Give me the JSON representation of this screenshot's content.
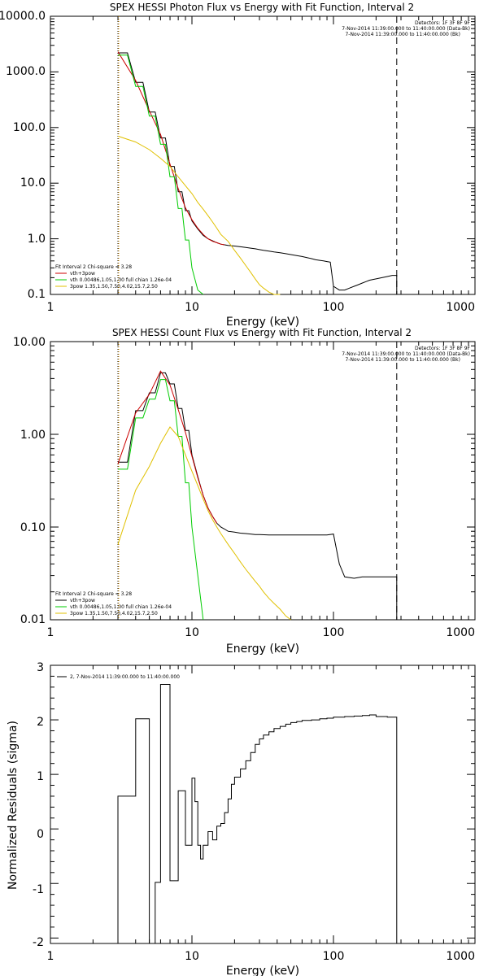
{
  "chart_data": [
    {
      "type": "line",
      "title": "SPEX HESSI Photon Flux vs Energy with Fit Function, Interval 2",
      "xlabel": "Energy (keV)",
      "ylabel": "",
      "xscale": "log",
      "yscale": "log",
      "xlim": [
        1,
        1000
      ],
      "ylim": [
        0.1,
        10000
      ],
      "xticks": [
        "1",
        "10",
        "100",
        "1000"
      ],
      "yticks": [
        "0.1",
        "1.0",
        "10.0",
        "100.0",
        "1000.0",
        "10000.0"
      ],
      "info_lines": [
        "Detectors: 1F 3F 8F 9F",
        "7-Nov-2014 11:39:00.000 to 11:40:00.000 (Data-Bk)",
        "7-Nov-2014 11:39:00.000 to 11:40:00.000 (Bk)"
      ],
      "fit_text": [
        "Fit Interval 2   Chi-square = 3.28",
        "vth+3pow",
        "vth 0.00486,1.05,1.00  full chian 1.26e-04",
        "3pow 1.35,1.50,7.50,4.02,15.7,2.50"
      ],
      "vlines": [
        {
          "x": 3,
          "style": "dotted",
          "color": "#000000"
        },
        {
          "x": 3,
          "style": "dotted",
          "color": "#f0a000"
        },
        {
          "x": 280,
          "style": "dashed",
          "color": "#000000"
        }
      ],
      "series": [
        {
          "color": "#000000",
          "x": [
            3,
            3.5,
            4,
            4.5,
            5,
            5.5,
            6,
            6.5,
            7,
            7.5,
            8,
            8.5,
            9,
            9.5,
            10,
            11,
            12,
            13,
            14,
            15,
            16,
            17,
            18,
            20,
            22,
            24,
            26,
            28,
            30,
            32,
            35,
            38,
            42,
            46,
            50,
            55,
            60,
            65,
            70,
            75,
            80,
            85,
            90,
            95,
            100,
            110,
            120,
            130,
            140,
            150,
            160,
            170,
            180,
            200,
            220,
            240,
            260,
            280
          ],
          "y": [
            2200,
            2200,
            650,
            650,
            190,
            190,
            65,
            65,
            20,
            20,
            7,
            7,
            3.2,
            3.2,
            2.1,
            1.5,
            1.15,
            1.0,
            0.92,
            0.85,
            0.8,
            0.78,
            0.76,
            0.74,
            0.72,
            0.7,
            0.68,
            0.66,
            0.64,
            0.62,
            0.6,
            0.58,
            0.56,
            0.54,
            0.52,
            0.5,
            0.48,
            0.46,
            0.44,
            0.42,
            0.41,
            0.4,
            0.39,
            0.38,
            0.14,
            0.12,
            0.12,
            0.13,
            0.14,
            0.15,
            0.16,
            0.17,
            0.18,
            0.19,
            0.2,
            0.21,
            0.22,
            0.22
          ]
        },
        {
          "color": "#cc0000",
          "x": [
            3,
            4,
            5,
            6,
            7,
            8,
            9,
            10,
            11,
            12,
            13,
            14,
            15,
            16,
            17
          ],
          "y": [
            2300,
            700,
            200,
            75,
            22,
            8,
            3.6,
            2.2,
            1.55,
            1.2,
            1.0,
            0.9,
            0.85,
            0.8,
            0.78
          ]
        },
        {
          "color": "#00cc00",
          "x": [
            3,
            3.5,
            4,
            4.5,
            5,
            5.5,
            6,
            6.5,
            7,
            7.5,
            8,
            8.5,
            9,
            9.5,
            10,
            11,
            12
          ],
          "y": [
            2000,
            2000,
            550,
            550,
            160,
            160,
            50,
            50,
            13,
            13,
            3.5,
            3.5,
            0.95,
            0.95,
            0.3,
            0.12,
            0.1
          ]
        },
        {
          "color": "#e0c000",
          "x": [
            3,
            4,
            5,
            6,
            7,
            8,
            9,
            10,
            11,
            12,
            13,
            14,
            15,
            16,
            18,
            20,
            22,
            24,
            26,
            28,
            30,
            32,
            35,
            38,
            42
          ],
          "y": [
            70,
            55,
            40,
            28,
            20,
            13,
            9,
            6.5,
            4.5,
            3.4,
            2.6,
            2.0,
            1.55,
            1.2,
            0.9,
            0.62,
            0.45,
            0.33,
            0.25,
            0.19,
            0.15,
            0.13,
            0.11,
            0.1,
            0.1
          ]
        }
      ]
    },
    {
      "type": "line",
      "title": "SPEX HESSI Count Flux vs Energy with Fit Function, Interval 2",
      "xlabel": "Energy (keV)",
      "ylabel": "",
      "xscale": "log",
      "yscale": "log",
      "xlim": [
        1,
        1000
      ],
      "ylim": [
        0.01,
        10
      ],
      "xticks": [
        "1",
        "10",
        "100",
        "1000"
      ],
      "yticks": [
        "0.01",
        "0.10",
        "1.00",
        "10.00"
      ],
      "info_lines": [
        "Detectors: 1F 3F 8F 9F",
        "7-Nov-2014 11:39:00.000 to 11:40:00.000 (Data-Bk)",
        "7-Nov-2014 11:39:00.000 to 11:40:00.000 (Bk)"
      ],
      "fit_text": [
        "Fit Interval 2   Chi-square = 3.28",
        "vth+3pow",
        "vth 0.00486,1.05,1.00  full chian 1.26e-04",
        "3pow 1.35,1.50,7.50,4.02,15.7,2.50"
      ],
      "vlines": [
        {
          "x": 3,
          "style": "dotted",
          "color": "#000000"
        },
        {
          "x": 3,
          "style": "dotted",
          "color": "#f0a000"
        },
        {
          "x": 280,
          "style": "dashed",
          "color": "#000000"
        }
      ],
      "series": [
        {
          "color": "#000000",
          "x": [
            3,
            3.5,
            4,
            4.5,
            5,
            5.5,
            6,
            6.5,
            7,
            7.5,
            8,
            8.5,
            9,
            9.5,
            10,
            11,
            12,
            13,
            14,
            15,
            16,
            17,
            18,
            20,
            22,
            24,
            26,
            28,
            30,
            35,
            40,
            50,
            60,
            70,
            80,
            90,
            100,
            110,
            120,
            140,
            160,
            200,
            280
          ],
          "y": [
            0.5,
            0.5,
            1.8,
            1.8,
            2.8,
            2.8,
            4.6,
            4.6,
            3.5,
            3.5,
            1.9,
            1.9,
            1.1,
            1.1,
            0.6,
            0.35,
            0.22,
            0.16,
            0.13,
            0.11,
            0.1,
            0.095,
            0.09,
            0.088,
            0.086,
            0.085,
            0.084,
            0.083,
            0.083,
            0.082,
            0.082,
            0.082,
            0.082,
            0.082,
            0.082,
            0.082,
            0.084,
            0.04,
            0.029,
            0.028,
            0.029,
            0.029,
            0.029
          ]
        },
        {
          "color": "#cc0000",
          "x": [
            3,
            4,
            5,
            6,
            7,
            8,
            9,
            10,
            11,
            12,
            13,
            14,
            15
          ],
          "y": [
            0.48,
            1.7,
            2.7,
            4.8,
            3.4,
            1.85,
            1.05,
            0.58,
            0.34,
            0.22,
            0.16,
            0.13,
            0.11
          ]
        },
        {
          "color": "#00cc00",
          "x": [
            3,
            3.5,
            4,
            4.5,
            5,
            5.5,
            6,
            6.5,
            7,
            7.5,
            8,
            8.5,
            9,
            9.5,
            10,
            11,
            12
          ],
          "y": [
            0.42,
            0.42,
            1.5,
            1.5,
            2.4,
            2.4,
            3.9,
            3.9,
            2.3,
            2.3,
            0.95,
            0.95,
            0.3,
            0.3,
            0.1,
            0.03,
            0.01
          ]
        },
        {
          "color": "#e0c000",
          "x": [
            3,
            4,
            5,
            6,
            7,
            8,
            9,
            10,
            11,
            12,
            13,
            14,
            15,
            16,
            18,
            20,
            22,
            24,
            26,
            28,
            30,
            32,
            35,
            38,
            42,
            46,
            50
          ],
          "y": [
            0.065,
            0.25,
            0.45,
            0.8,
            1.2,
            0.95,
            0.6,
            0.4,
            0.28,
            0.2,
            0.15,
            0.12,
            0.1,
            0.085,
            0.065,
            0.052,
            0.042,
            0.035,
            0.03,
            0.026,
            0.023,
            0.02,
            0.017,
            0.015,
            0.013,
            0.011,
            0.01
          ]
        }
      ]
    },
    {
      "type": "line",
      "title": "",
      "xlabel": "Energy (keV)",
      "ylabel": "Normalized Residuals (sigma)",
      "xscale": "log",
      "yscale": "linear",
      "xlim": [
        1,
        1000
      ],
      "ylim": [
        -2.1,
        3
      ],
      "xticks": [
        "1",
        "10",
        "100",
        "1000"
      ],
      "yticks": [
        "-2",
        "-1",
        "0",
        "1",
        "2",
        "3"
      ],
      "legend": {
        "label": "2, 7-Nov-2014 11:39:00.000 to 11:40:00.000",
        "position": "top-left"
      },
      "series": [
        {
          "color": "#000000",
          "steps": true,
          "edges": [
            3,
            4,
            5,
            5.5,
            6,
            7,
            7.5,
            8,
            9,
            10,
            10.5,
            11,
            11.5,
            12,
            13,
            14,
            15,
            16,
            17,
            18,
            19,
            20,
            22,
            24,
            26,
            28,
            30,
            32,
            35,
            38,
            42,
            46,
            50,
            55,
            60,
            70,
            80,
            90,
            100,
            120,
            140,
            160,
            180,
            200,
            240,
            280
          ],
          "y": [
            0.6,
            2.02,
            -2.1,
            -0.98,
            2.65,
            -0.95,
            -0.95,
            0.7,
            -0.3,
            0.93,
            0.5,
            -0.3,
            -0.55,
            -0.3,
            -0.05,
            -0.2,
            0.05,
            0.1,
            0.3,
            0.55,
            0.82,
            0.95,
            1.1,
            1.25,
            1.4,
            1.55,
            1.65,
            1.72,
            1.78,
            1.84,
            1.88,
            1.92,
            1.95,
            1.97,
            1.99,
            2.0,
            2.02,
            2.03,
            2.05,
            2.06,
            2.07,
            2.08,
            2.09,
            2.06,
            2.05
          ]
        }
      ]
    }
  ]
}
